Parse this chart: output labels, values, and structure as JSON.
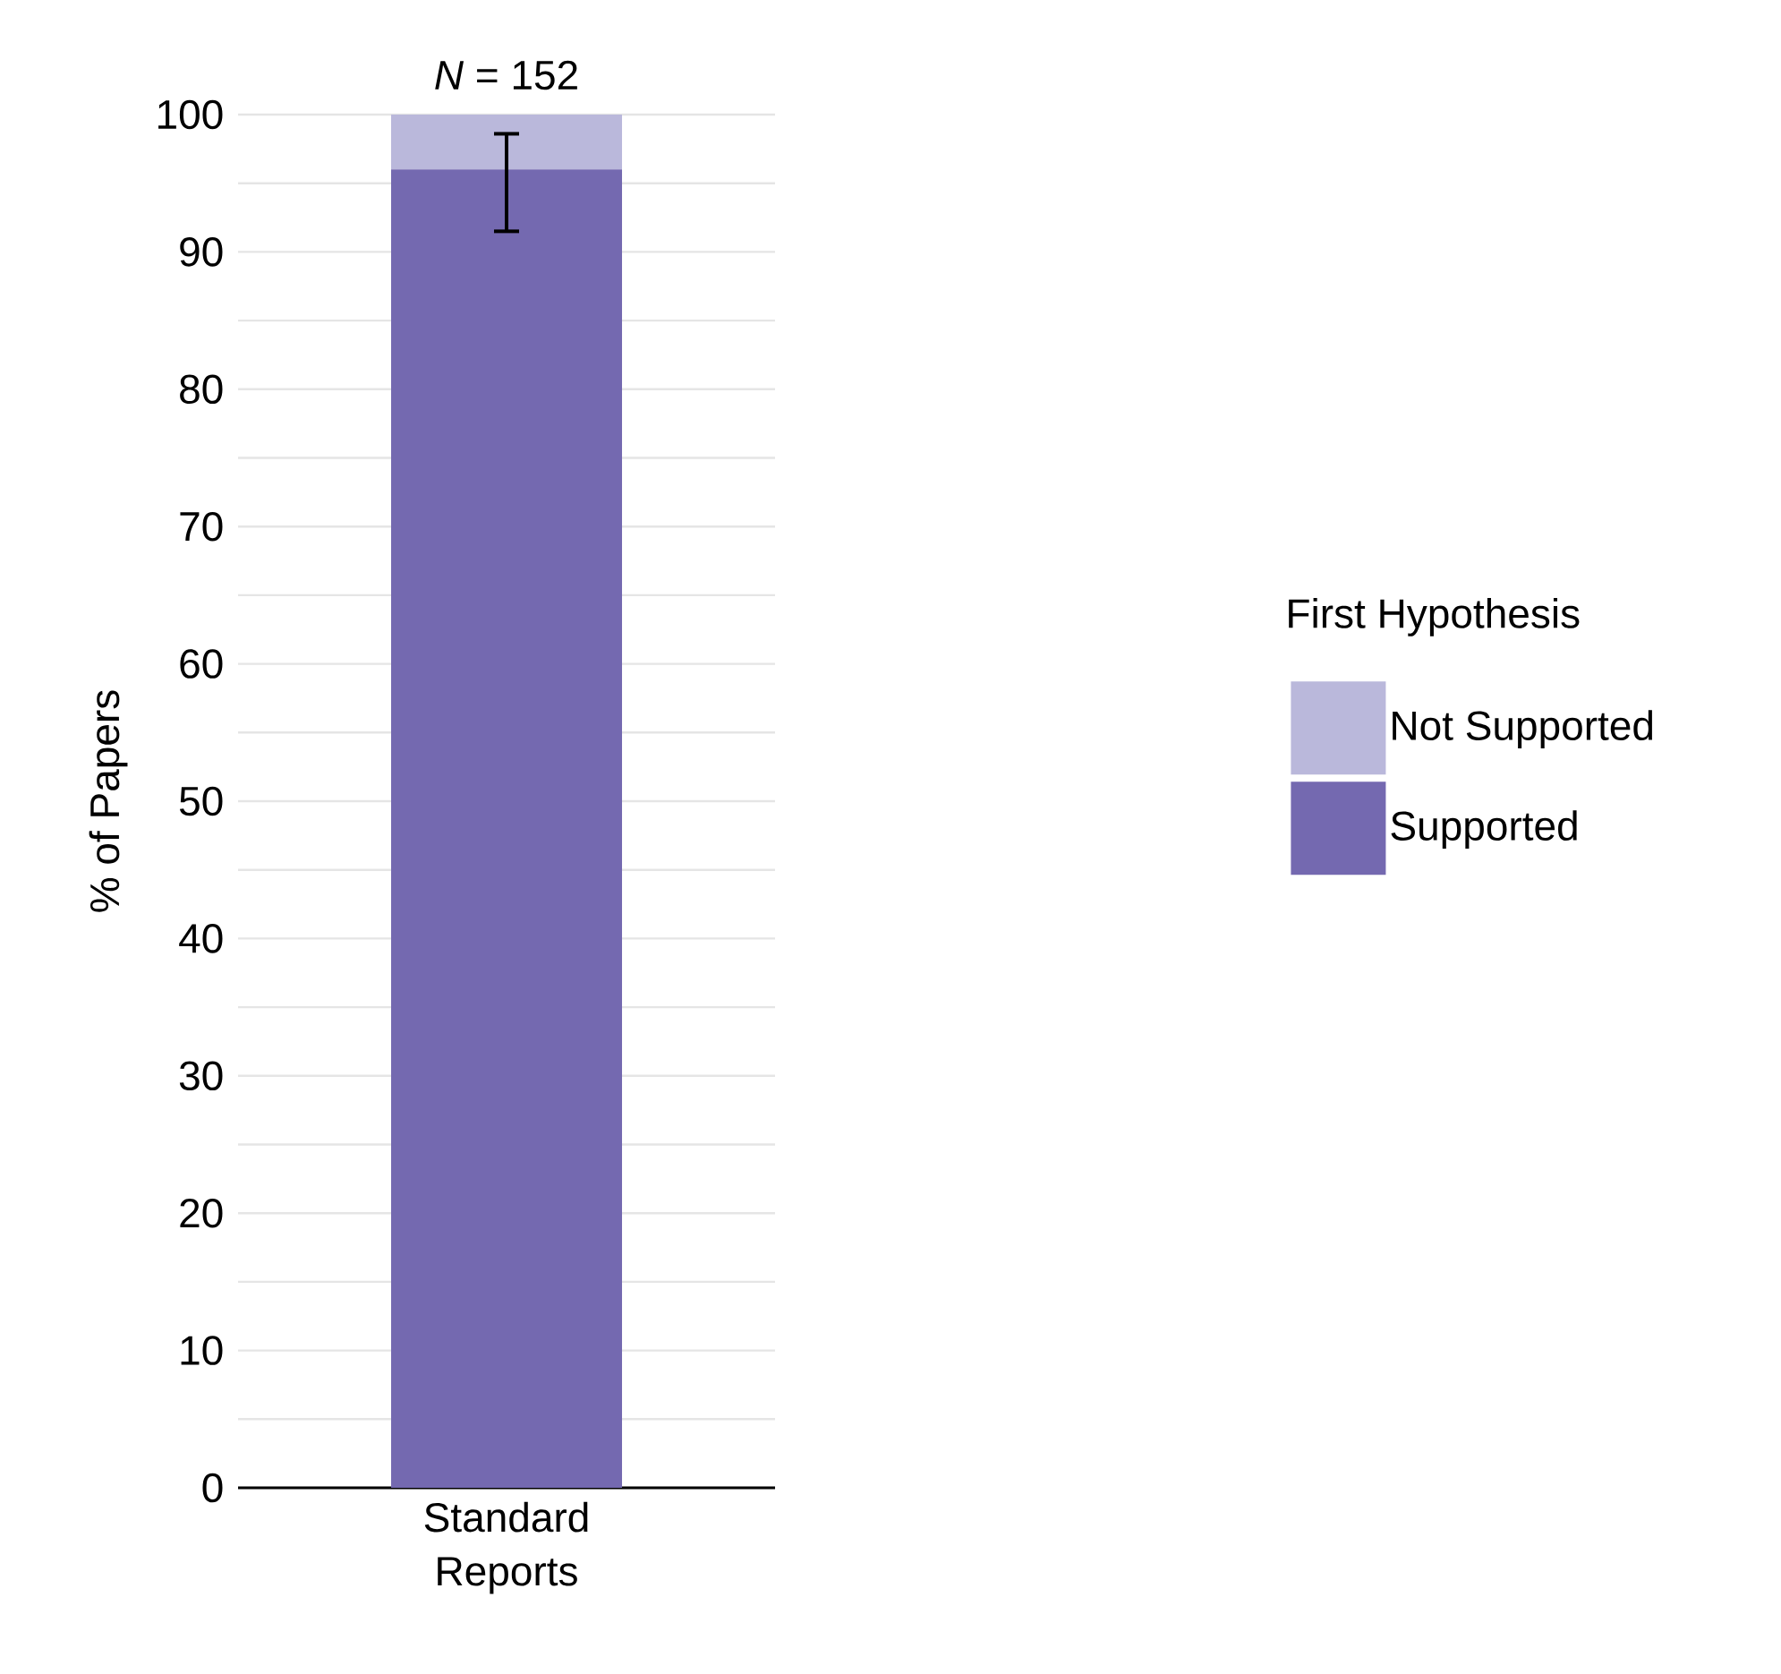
{
  "chart_data": {
    "type": "bar",
    "title": "*N* = 152",
    "ylabel": "% of Papers",
    "legend_title": "First Hypothesis",
    "categories": [
      "Standard Reports"
    ],
    "stacked": true,
    "series": [
      {
        "name": "Supported",
        "color": "#7469b0",
        "values": [
          96
        ],
        "errors": [
          [
            91.5,
            98.6
          ]
        ]
      },
      {
        "name": "Not Supported",
        "color": "#bab8db",
        "values": [
          4
        ]
      }
    ],
    "ylim": [
      0,
      100
    ],
    "yticks": [
      0,
      {
        "value": 5,
        "label": null
      },
      10,
      {
        "value": 15,
        "label": null
      },
      20,
      {
        "value": 25,
        "label": null
      },
      30,
      {
        "value": 35,
        "label": null
      },
      40,
      {
        "value": 45,
        "label": null
      },
      50,
      {
        "value": 55,
        "label": null
      },
      60,
      {
        "value": 65,
        "label": null
      },
      70,
      {
        "value": 75,
        "label": null
      },
      80,
      {
        "value": 85,
        "label": null
      },
      90,
      {
        "value": 95,
        "label": null
      },
      100
    ],
    "grid": "y",
    "legend": "right"
  }
}
